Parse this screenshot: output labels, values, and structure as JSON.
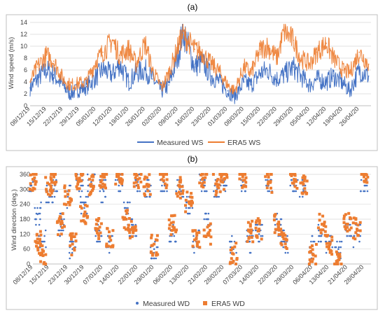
{
  "colors": {
    "measured": "#4472C4",
    "era5": "#ED7D31"
  },
  "chart_data": [
    {
      "type": "line",
      "panel_label": "(a)",
      "xlabel": "",
      "ylabel": "Wind speed (m/s)",
      "ylim": [
        0,
        14
      ],
      "yticks": [
        "0",
        "2",
        "4",
        "6",
        "8",
        "10",
        "12",
        "14"
      ],
      "x_start": "08/12/19",
      "x_end": "01/05/20",
      "x_tick_labels": [
        "08/12/19",
        "15/12/19",
        "22/12/19",
        "29/12/19",
        "05/01/20",
        "12/01/20",
        "19/01/20",
        "26/01/20",
        "02/02/20",
        "09/02/20",
        "16/02/20",
        "23/02/20",
        "01/03/20",
        "08/03/20",
        "15/03/20",
        "22/03/20",
        "29/03/20",
        "05/04/20",
        "12/04/20",
        "19/04/20",
        "26/04/20"
      ],
      "grid": "horizontal",
      "legend_position": "bottom",
      "series": [
        {
          "name": "Measured WS",
          "x": [
            "08/12/19",
            "11/12/19",
            "15/12/19",
            "18/12/19",
            "22/12/19",
            "25/12/19",
            "29/12/19",
            "01/01/20",
            "05/01/20",
            "08/01/20",
            "12/01/20",
            "15/01/20",
            "19/01/20",
            "22/01/20",
            "26/01/20",
            "29/01/20",
            "02/02/20",
            "05/02/20",
            "09/02/20",
            "11/02/20",
            "16/02/20",
            "19/02/20",
            "23/02/20",
            "26/02/20",
            "01/03/20",
            "04/03/20",
            "08/03/20",
            "11/03/20",
            "15/03/20",
            "18/03/20",
            "22/03/20",
            "25/03/20",
            "29/03/20",
            "01/04/20",
            "05/04/20",
            "08/04/20",
            "12/04/20",
            "15/04/20",
            "19/04/20",
            "22/04/20",
            "26/04/20",
            "30/04/20"
          ],
          "y": [
            3.0,
            4.5,
            6.0,
            5.2,
            3.4,
            2.0,
            2.8,
            3.2,
            4.8,
            6.1,
            5.2,
            7.0,
            4.0,
            5.5,
            6.0,
            4.5,
            2.5,
            3.5,
            8.5,
            12.8,
            6.5,
            7.5,
            5.0,
            4.2,
            2.5,
            1.5,
            4.0,
            3.5,
            5.5,
            6.0,
            4.5,
            5.2,
            6.5,
            5.0,
            3.5,
            4.5,
            4.0,
            5.0,
            3.8,
            2.5,
            6.0,
            5.0
          ]
        },
        {
          "name": "ERA5 WS",
          "x": [
            "08/12/19",
            "11/12/19",
            "15/12/19",
            "18/12/19",
            "22/12/19",
            "25/12/19",
            "29/12/19",
            "01/01/20",
            "05/01/20",
            "08/01/20",
            "12/01/20",
            "15/01/20",
            "19/01/20",
            "22/01/20",
            "26/01/20",
            "29/01/20",
            "02/02/20",
            "05/02/20",
            "09/02/20",
            "11/02/20",
            "16/02/20",
            "19/02/20",
            "23/02/20",
            "26/02/20",
            "01/03/20",
            "04/03/20",
            "08/03/20",
            "11/03/20",
            "15/03/20",
            "18/03/20",
            "22/03/20",
            "25/03/20",
            "29/03/20",
            "01/04/20",
            "05/04/20",
            "08/04/20",
            "12/04/20",
            "15/04/20",
            "19/04/20",
            "22/04/20",
            "26/04/20",
            "30/04/20"
          ],
          "y": [
            4.0,
            6.5,
            8.5,
            7.5,
            4.5,
            3.5,
            3.8,
            4.0,
            7.5,
            9.0,
            11.0,
            8.5,
            9.5,
            7.0,
            10.5,
            6.0,
            3.0,
            5.5,
            10.0,
            12.0,
            9.5,
            9.0,
            7.0,
            6.0,
            3.5,
            2.5,
            6.5,
            5.5,
            9.5,
            10.0,
            8.0,
            12.5,
            11.0,
            8.0,
            7.0,
            9.0,
            10.5,
            8.0,
            6.0,
            5.5,
            9.0,
            7.0
          ]
        }
      ]
    },
    {
      "type": "scatter",
      "panel_label": "(b)",
      "xlabel": "",
      "ylabel": "Wind direction (deg.)",
      "ylim": [
        0,
        360
      ],
      "yticks": [
        "0",
        "60",
        "120",
        "180",
        "240",
        "300",
        "360"
      ],
      "x_start": "08/12/19",
      "x_end": "01/05/20",
      "x_tick_labels": [
        "08/12/19",
        "15/12/19",
        "23/12/19",
        "30/12/19",
        "07/01/20",
        "14/01/20",
        "22/01/20",
        "29/01/20",
        "06/02/20",
        "13/02/20",
        "21/02/20",
        "28/02/20",
        "07/03/20",
        "14/03/20",
        "22/03/20",
        "29/03/20",
        "06/04/20",
        "13/04/20",
        "21/04/20",
        "28/04/20"
      ],
      "grid": "horizontal",
      "legend_position": "bottom",
      "series": [
        {
          "name": "Measured WD",
          "x": [
            "08/12/19",
            "10/12/19",
            "12/12/19",
            "15/12/19",
            "17/12/19",
            "20/12/19",
            "23/12/19",
            "25/12/19",
            "28/12/19",
            "30/12/19",
            "02/01/20",
            "05/01/20",
            "07/01/20",
            "10/01/20",
            "14/01/20",
            "17/01/20",
            "20/01/20",
            "22/01/20",
            "26/01/20",
            "29/01/20",
            "02/02/20",
            "06/02/20",
            "09/02/20",
            "13/02/20",
            "16/02/20",
            "19/02/20",
            "21/02/20",
            "25/02/20",
            "28/02/20",
            "03/03/20",
            "07/03/20",
            "10/03/20",
            "14/03/20",
            "18/03/20",
            "22/03/20",
            "25/03/20",
            "29/03/20",
            "02/04/20",
            "06/04/20",
            "10/04/20",
            "13/04/20",
            "17/04/20",
            "21/04/20",
            "25/04/20",
            "28/04/20"
          ],
          "y": [
            330,
            200,
            90,
            270,
            300,
            150,
            270,
            60,
            330,
            240,
            330,
            120,
            300,
            90,
            330,
            200,
            150,
            330,
            300,
            60,
            330,
            120,
            300,
            240,
            90,
            330,
            180,
            300,
            330,
            60,
            330,
            90,
            120,
            330,
            150,
            90,
            330,
            300,
            60,
            120,
            90,
            60,
            150,
            120,
            330
          ]
        },
        {
          "name": "ERA5 WD",
          "x": [
            "08/12/19",
            "10/12/19",
            "12/12/19",
            "15/12/19",
            "17/12/19",
            "20/12/19",
            "23/12/19",
            "25/12/19",
            "28/12/19",
            "30/12/19",
            "02/01/20",
            "05/01/20",
            "07/01/20",
            "10/01/20",
            "14/01/20",
            "17/01/20",
            "20/01/20",
            "22/01/20",
            "26/01/20",
            "29/01/20",
            "02/02/20",
            "06/02/20",
            "09/02/20",
            "13/02/20",
            "16/02/20",
            "19/02/20",
            "21/02/20",
            "25/02/20",
            "28/02/20",
            "03/03/20",
            "07/03/20",
            "10/03/20",
            "14/03/20",
            "18/03/20",
            "22/03/20",
            "25/03/20",
            "29/03/20",
            "02/04/20",
            "06/04/20",
            "10/04/20",
            "13/04/20",
            "17/04/20",
            "21/04/20",
            "25/04/20",
            "28/04/20"
          ],
          "y": [
            340,
            100,
            40,
            320,
            350,
            160,
            280,
            80,
            345,
            200,
            320,
            140,
            350,
            110,
            340,
            180,
            130,
            340,
            320,
            80,
            350,
            150,
            310,
            250,
            100,
            345,
            120,
            320,
            340,
            40,
            350,
            130,
            140,
            330,
            160,
            100,
            340,
            320,
            40,
            160,
            70,
            30,
            160,
            140,
            350
          ]
        }
      ]
    }
  ]
}
